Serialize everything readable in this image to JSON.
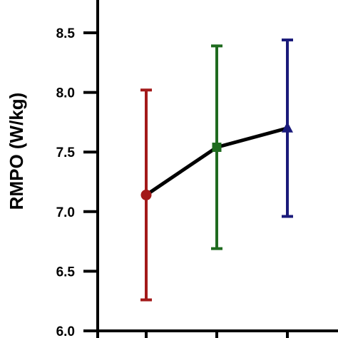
{
  "chart_data": {
    "type": "scatter",
    "ylabel": "RMPO (W/kg)",
    "xlabel": "",
    "title": "",
    "ylim": [
      6.0,
      8.75
    ],
    "y_ticks": [
      "6.0",
      "6.5",
      "7.0",
      "7.5",
      "8.0",
      "8.5"
    ],
    "y_tick_values": [
      6.0,
      6.5,
      7.0,
      7.5,
      8.0,
      8.5
    ],
    "x_tick_count": 3,
    "connecting_line": true,
    "points": [
      {
        "x": 1,
        "mean": 7.14,
        "lower": 6.26,
        "upper": 8.02,
        "marker": "circle",
        "color": "#a31a1a"
      },
      {
        "x": 2,
        "mean": 7.54,
        "lower": 6.69,
        "upper": 8.39,
        "marker": "square",
        "color": "#1f6b1f"
      },
      {
        "x": 3,
        "mean": 7.7,
        "lower": 6.96,
        "upper": 8.44,
        "marker": "triangle",
        "color": "#1a1a7a"
      }
    ],
    "line_color": "#000000",
    "grid": false,
    "legend": "none"
  }
}
